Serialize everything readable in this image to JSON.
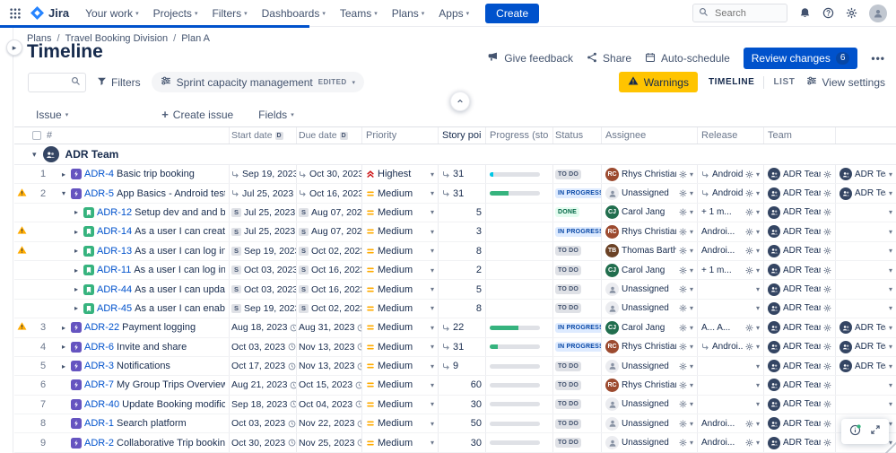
{
  "colors": {
    "brand": "#0052CC",
    "warning_bg": "#FFC400",
    "todo": "#DFE1E6",
    "inprogress": "#DEEBFF",
    "done": "#36B37E",
    "epic": "#6554C0",
    "story": "#36B37E"
  },
  "nav": {
    "brand": "Jira",
    "items": [
      "Your work",
      "Projects",
      "Filters",
      "Dashboards",
      "Teams",
      "Plans",
      "Apps"
    ],
    "create_label": "Create",
    "search_placeholder": "Search"
  },
  "breadcrumb": [
    "Plans",
    "Travel Booking Division",
    "Plan A"
  ],
  "page": {
    "title": "Timeline"
  },
  "header_actions": {
    "feedback": "Give feedback",
    "share": "Share",
    "auto_schedule": "Auto-schedule",
    "review": "Review changes",
    "review_count": "6",
    "more": "•••"
  },
  "toolbar": {
    "filters": "Filters",
    "preset": "Sprint capacity management",
    "preset_badge": "EDITED",
    "warnings": "Warnings",
    "view_tabs": [
      "TIMELINE",
      "LIST"
    ],
    "active_tab": "TIMELINE",
    "view_settings": "View settings"
  },
  "table_toolbar": {
    "issue": "Issue",
    "create_issue": "Create issue",
    "fields": "Fields"
  },
  "columns": {
    "num": "#",
    "start": "Start date",
    "due": "Due date",
    "priority": "Priority",
    "points": "Story poi...",
    "progress": "Progress (story ...",
    "status": "Status",
    "assignee": "Assignee",
    "release": "Release",
    "team": "Team"
  },
  "legend": {
    "sprint_badge": "S",
    "date_badge": "D"
  },
  "group": {
    "name": "ADR Team"
  },
  "rows": [
    {
      "num": "1",
      "warn": false,
      "level": 0,
      "expander": "right",
      "type": "epic",
      "key": "ADR-4",
      "summary": "Basic trip booking",
      "start": {
        "badge": "rollup",
        "text": "Sep 19, 2023",
        "inferred": false
      },
      "due": {
        "badge": "rollup",
        "text": "Oct 30, 2023",
        "inferred": false
      },
      "priority": {
        "kind": "highest",
        "label": "Highest"
      },
      "points": {
        "rollup": true,
        "value": "31"
      },
      "progress": {
        "pct": 8,
        "color": "#00C7E6"
      },
      "status": {
        "kind": "todo",
        "label": "TO DO"
      },
      "assignee": {
        "name": "Rhys Christian",
        "initials": "RC",
        "color": "#9C4A2F"
      },
      "release": {
        "rollup": true,
        "label": "Android..."
      },
      "team": "ADR Team",
      "team2": "ADR Team"
    },
    {
      "num": "2",
      "warn": true,
      "level": 0,
      "expander": "down",
      "type": "epic",
      "key": "ADR-5",
      "summary": "App Basics - Android test",
      "start": {
        "badge": "rollup",
        "text": "Jul 25, 2023",
        "inferred": false
      },
      "due": {
        "badge": "rollup",
        "text": "Oct 16, 2023",
        "inferred": false
      },
      "priority": {
        "kind": "medium",
        "label": "Medium"
      },
      "points": {
        "rollup": true,
        "value": "31"
      },
      "progress": {
        "pct": 38,
        "color": "#36B37E"
      },
      "status": {
        "kind": "inprogress",
        "label": "IN PROGRESS"
      },
      "assignee": {
        "unassigned": true,
        "name": "Unassigned"
      },
      "release": {
        "rollup": true,
        "label": "Android..."
      },
      "team": "ADR Team",
      "team2": "ADR Team"
    },
    {
      "num": "",
      "warn": false,
      "level": 1,
      "expander": "right",
      "type": "story",
      "key": "ADR-12",
      "summary": "Setup dev and and build enviro...",
      "start": {
        "badge": "sprint",
        "text": "Jul 25, 2023",
        "inferred": false
      },
      "due": {
        "badge": "sprint",
        "text": "Aug 07, 2023",
        "inferred": false
      },
      "priority": {
        "kind": "medium",
        "label": "Medium"
      },
      "points": {
        "rollup": false,
        "value": "5"
      },
      "progress": null,
      "status": {
        "kind": "done",
        "label": "DONE"
      },
      "assignee": {
        "name": "Carol Jang",
        "initials": "CJ",
        "color": "#216E4E"
      },
      "release": {
        "rollup": false,
        "label": "+ 1 m..."
      },
      "team": "ADR Team",
      "team2": null
    },
    {
      "num": "",
      "warn": true,
      "level": 1,
      "expander": "right",
      "type": "story",
      "key": "ADR-14",
      "summary": "As a user I can create a custo...",
      "start": {
        "badge": "sprint",
        "text": "Jul 25, 2023",
        "inferred": false
      },
      "due": {
        "badge": "sprint",
        "text": "Aug 07, 2023",
        "inferred": false
      },
      "priority": {
        "kind": "medium",
        "label": "Medium"
      },
      "points": {
        "rollup": false,
        "value": "3"
      },
      "progress": null,
      "status": {
        "kind": "inprogress",
        "label": "IN PROGRESS"
      },
      "assignee": {
        "name": "Rhys Christian",
        "initials": "RC",
        "color": "#9C4A2F"
      },
      "release": {
        "rollup": false,
        "label": "Androi..."
      },
      "team": "ADR Team",
      "team2": null
    },
    {
      "num": "",
      "warn": true,
      "level": 1,
      "expander": "right",
      "type": "story",
      "key": "ADR-13",
      "summary": "As a user I can log into the syst...",
      "start": {
        "badge": "sprint",
        "text": "Sep 19, 2023",
        "inferred": false
      },
      "due": {
        "badge": "sprint",
        "text": "Oct 02, 2023",
        "inferred": false
      },
      "priority": {
        "kind": "medium",
        "label": "Medium"
      },
      "points": {
        "rollup": false,
        "value": "8"
      },
      "progress": null,
      "status": {
        "kind": "todo",
        "label": "TO DO"
      },
      "assignee": {
        "name": "Thomas Barth...",
        "initials": "TB",
        "color": "#6B4226"
      },
      "release": {
        "rollup": false,
        "label": "Androi..."
      },
      "team": "ADR Team",
      "team2": null
    },
    {
      "num": "",
      "warn": false,
      "level": 1,
      "expander": "right",
      "type": "story",
      "key": "ADR-11",
      "summary": "As a user I can log into the syst...",
      "start": {
        "badge": "sprint",
        "text": "Oct 03, 2023",
        "inferred": false
      },
      "due": {
        "badge": "sprint",
        "text": "Oct 16, 2023",
        "inferred": false
      },
      "priority": {
        "kind": "medium",
        "label": "Medium"
      },
      "points": {
        "rollup": false,
        "value": "2"
      },
      "progress": null,
      "status": {
        "kind": "todo",
        "label": "TO DO"
      },
      "assignee": {
        "name": "Carol Jang",
        "initials": "CJ",
        "color": "#216E4E"
      },
      "release": {
        "rollup": false,
        "label": "+ 1 m..."
      },
      "team": "ADR Team",
      "team2": null
    },
    {
      "num": "",
      "warn": false,
      "level": 1,
      "expander": "right",
      "type": "story",
      "key": "ADR-44",
      "summary": "As a user I can update my logi...",
      "start": {
        "badge": "sprint",
        "text": "Oct 03, 2023",
        "inferred": false
      },
      "due": {
        "badge": "sprint",
        "text": "Oct 16, 2023",
        "inferred": false
      },
      "priority": {
        "kind": "medium",
        "label": "Medium"
      },
      "points": {
        "rollup": false,
        "value": "5"
      },
      "progress": null,
      "status": {
        "kind": "todo",
        "label": "TO DO"
      },
      "assignee": {
        "unassigned": true,
        "name": "Unassigned"
      },
      "release": null,
      "team": "ADR Team",
      "team2": null
    },
    {
      "num": "",
      "warn": false,
      "level": 1,
      "expander": "right",
      "type": "story",
      "key": "ADR-45",
      "summary": "As a user I can enable push no...",
      "start": {
        "badge": "sprint",
        "text": "Sep 19, 2023",
        "inferred": false
      },
      "due": {
        "badge": "sprint",
        "text": "Oct 02, 2023",
        "inferred": false
      },
      "priority": {
        "kind": "medium",
        "label": "Medium"
      },
      "points": {
        "rollup": false,
        "value": "8"
      },
      "progress": null,
      "status": {
        "kind": "todo",
        "label": "TO DO"
      },
      "assignee": {
        "unassigned": true,
        "name": "Unassigned"
      },
      "release": null,
      "team": "ADR Team",
      "team2": null
    },
    {
      "num": "3",
      "warn": true,
      "level": 0,
      "expander": "right",
      "type": "epic",
      "key": "ADR-22",
      "summary": "Payment logging",
      "start": {
        "badge": null,
        "text": "Aug 18, 2023",
        "inferred": true
      },
      "due": {
        "badge": null,
        "text": "Aug 31, 2023",
        "inferred": true
      },
      "priority": {
        "kind": "medium",
        "label": "Medium"
      },
      "points": {
        "rollup": true,
        "value": "22"
      },
      "progress": {
        "pct": 57,
        "color": "#36B37E"
      },
      "status": {
        "kind": "inprogress",
        "label": "IN PROGRESS"
      },
      "assignee": {
        "name": "Carol Jang",
        "initials": "CJ",
        "color": "#216E4E"
      },
      "release": {
        "rollup": false,
        "label": "A... A..."
      },
      "team": "ADR Team",
      "team2": "ADR Team"
    },
    {
      "num": "4",
      "warn": false,
      "level": 0,
      "expander": "right",
      "type": "epic",
      "key": "ADR-6",
      "summary": "Invite and share",
      "start": {
        "badge": null,
        "text": "Oct 03, 2023",
        "inferred": true
      },
      "due": {
        "badge": null,
        "text": "Nov 13, 2023",
        "inferred": true
      },
      "priority": {
        "kind": "medium",
        "label": "Medium"
      },
      "points": {
        "rollup": true,
        "value": "31"
      },
      "progress": {
        "pct": 16,
        "color": "#36B37E"
      },
      "status": {
        "kind": "inprogress",
        "label": "IN PROGRESS"
      },
      "assignee": {
        "name": "Rhys Christian",
        "initials": "RC",
        "color": "#9C4A2F"
      },
      "release": {
        "rollup": true,
        "label": "Androi..."
      },
      "team": "ADR Team",
      "team2": "ADR Team"
    },
    {
      "num": "5",
      "warn": false,
      "level": 0,
      "expander": "right",
      "type": "epic",
      "key": "ADR-3",
      "summary": "Notifications",
      "start": {
        "badge": null,
        "text": "Oct 17, 2023",
        "inferred": true
      },
      "due": {
        "badge": null,
        "text": "Nov 13, 2023",
        "inferred": true
      },
      "priority": {
        "kind": "medium",
        "label": "Medium"
      },
      "points": {
        "rollup": true,
        "value": "9"
      },
      "progress": {
        "pct": 0,
        "color": "#36B37E"
      },
      "status": {
        "kind": "todo",
        "label": "TO DO"
      },
      "assignee": {
        "unassigned": true,
        "name": "Unassigned"
      },
      "release": null,
      "team": "ADR Team",
      "team2": "ADR Team"
    },
    {
      "num": "6",
      "warn": false,
      "level": 0,
      "expander": null,
      "type": "epic",
      "key": "ADR-7",
      "summary": "My Group Trips Overview",
      "start": {
        "badge": null,
        "text": "Aug 21, 2023",
        "inferred": true
      },
      "due": {
        "badge": null,
        "text": "Oct 15, 2023",
        "inferred": true
      },
      "priority": {
        "kind": "medium",
        "label": "Medium"
      },
      "points": {
        "rollup": false,
        "value": "60"
      },
      "progress": {
        "pct": 0,
        "color": "#36B37E"
      },
      "status": {
        "kind": "todo",
        "label": "TO DO"
      },
      "assignee": {
        "name": "Rhys Christian",
        "initials": "RC",
        "color": "#9C4A2F"
      },
      "release": null,
      "team": "ADR Team",
      "team2": null
    },
    {
      "num": "7",
      "warn": false,
      "level": 0,
      "expander": null,
      "type": "epic",
      "key": "ADR-40",
      "summary": "Update Booking modification serv...",
      "start": {
        "badge": null,
        "text": "Sep 18, 2023",
        "inferred": true
      },
      "due": {
        "badge": null,
        "text": "Oct 04, 2023",
        "inferred": true
      },
      "priority": {
        "kind": "medium",
        "label": "Medium"
      },
      "points": {
        "rollup": false,
        "value": "30"
      },
      "progress": {
        "pct": 0,
        "color": "#36B37E"
      },
      "status": {
        "kind": "todo",
        "label": "TO DO"
      },
      "assignee": {
        "unassigned": true,
        "name": "Unassigned"
      },
      "release": null,
      "team": "ADR Team",
      "team2": null
    },
    {
      "num": "8",
      "warn": false,
      "level": 0,
      "expander": null,
      "type": "epic",
      "key": "ADR-1",
      "summary": "Search platform",
      "start": {
        "badge": null,
        "text": "Oct 03, 2023",
        "inferred": true
      },
      "due": {
        "badge": null,
        "text": "Nov 22, 2023",
        "inferred": true
      },
      "priority": {
        "kind": "medium",
        "label": "Medium"
      },
      "points": {
        "rollup": false,
        "value": "50"
      },
      "progress": {
        "pct": 0,
        "color": "#36B37E"
      },
      "status": {
        "kind": "todo",
        "label": "TO DO"
      },
      "assignee": {
        "unassigned": true,
        "name": "Unassigned"
      },
      "release": {
        "rollup": false,
        "label": "Androi..."
      },
      "team": "ADR Team",
      "team2": null
    },
    {
      "num": "9",
      "warn": false,
      "level": 0,
      "expander": null,
      "type": "epic",
      "key": "ADR-2",
      "summary": "Collaborative Trip booking flow",
      "start": {
        "badge": null,
        "text": "Oct 30, 2023",
        "inferred": true
      },
      "due": {
        "badge": null,
        "text": "Nov 25, 2023",
        "inferred": true
      },
      "priority": {
        "kind": "medium",
        "label": "Medium"
      },
      "points": {
        "rollup": false,
        "value": "30"
      },
      "progress": {
        "pct": 0,
        "color": "#36B37E"
      },
      "status": {
        "kind": "todo",
        "label": "TO DO"
      },
      "assignee": {
        "unassigned": true,
        "name": "Unassigned"
      },
      "release": {
        "rollup": false,
        "label": "Androi..."
      },
      "team": "ADR Team",
      "team2": null
    }
  ]
}
